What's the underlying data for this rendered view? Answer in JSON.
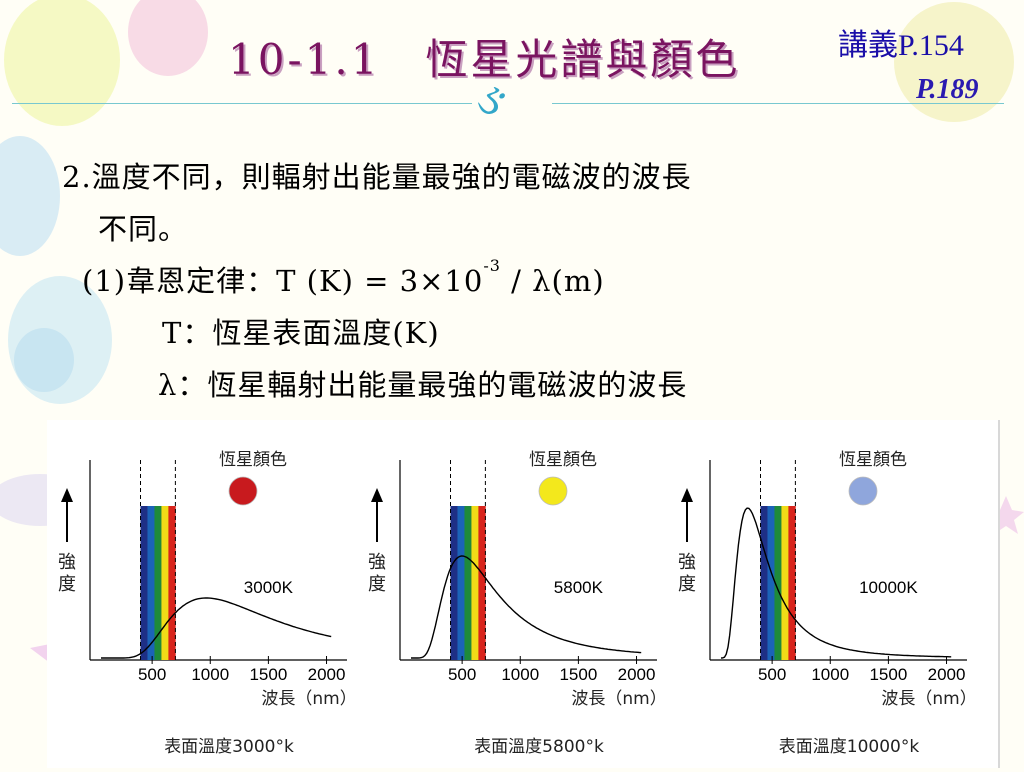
{
  "slide": {
    "title": "10-1.1　恆星光譜與顏色",
    "ref_primary": "講義P.154",
    "ref_secondary": "P.189",
    "ornament": "ઙ"
  },
  "content": {
    "line1_num": "2.",
    "line1": "溫度不同，則輻射出能量最強的電磁波的波長",
    "line2": "不同。",
    "law_label": "(1)韋恩定律：",
    "law_lhs": "T (K) = 3×10",
    "law_exp": "-3",
    "law_rhs": " /  λ(m)",
    "def_t": "T：恆星表面溫度(K)",
    "def_lambda": "λ：恆星輻射出能量最強的電磁波的波長"
  },
  "chart_data": [
    {
      "type": "line",
      "temperature_label": "3000K",
      "color_label": "恆星顏色",
      "star_color": "#c81a1e",
      "ylabel": "強\n度",
      "xlabel": "波長（nm）",
      "xticks": [
        500,
        1000,
        1500,
        2000
      ],
      "xlim": [
        0,
        2100
      ],
      "visible_band": [
        400,
        700
      ],
      "peak_nm": 966,
      "caption": "表面溫度3000°k",
      "series": [
        {
          "temperature_k": 3000
        }
      ]
    },
    {
      "type": "line",
      "temperature_label": "5800K",
      "color_label": "恆星顏色",
      "star_color": "#f3e81c",
      "ylabel": "強\n度",
      "xlabel": "波長（nm）",
      "xticks": [
        500,
        1000,
        1500,
        2000
      ],
      "xlim": [
        0,
        2100
      ],
      "visible_band": [
        400,
        700
      ],
      "peak_nm": 500,
      "caption": "表面溫度5800°k",
      "series": [
        {
          "temperature_k": 5800
        }
      ]
    },
    {
      "type": "line",
      "temperature_label": "10000K",
      "color_label": "恆星顏色",
      "star_color": "#8fa6dc",
      "ylabel": "強\n度",
      "xlabel": "波長（nm）",
      "xticks": [
        500,
        1000,
        1500,
        2000
      ],
      "xlim": [
        0,
        2100
      ],
      "visible_band": [
        400,
        700
      ],
      "peak_nm": 290,
      "caption": "表面溫度10000°k",
      "series": [
        {
          "temperature_k": 10000
        }
      ]
    }
  ],
  "theme": {
    "title_color": "#7a1460",
    "ref_color": "#1a0ea8",
    "rule_color": "#78c8d0"
  }
}
